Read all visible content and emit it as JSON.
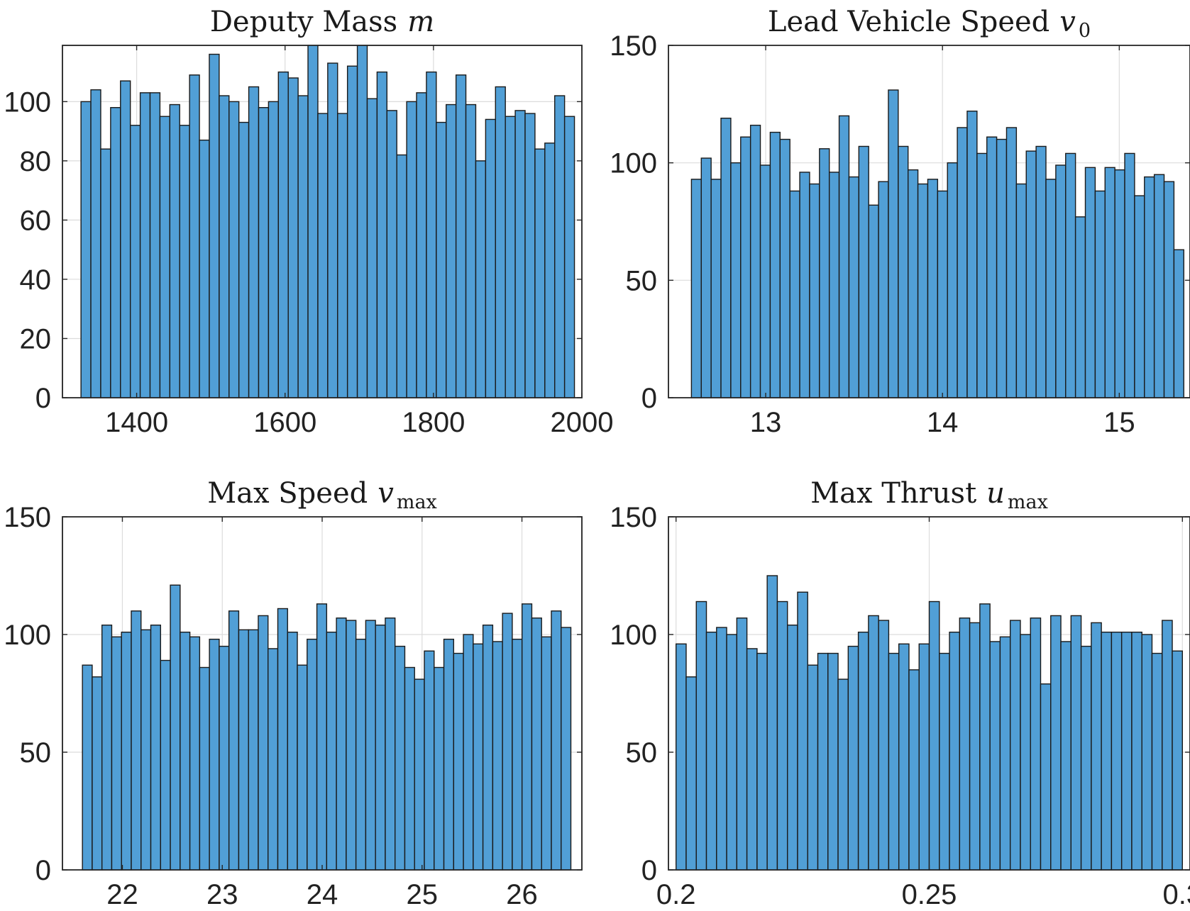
{
  "figure": {
    "bar_color": "#519fd6",
    "edge_color": "#1a1a1a"
  },
  "chart_data": [
    {
      "type": "bar",
      "title": "Deputy Mass",
      "title_symbol": "m",
      "title_subscript": "",
      "xlabel": "",
      "ylabel": "",
      "xlim": [
        1300,
        2000
      ],
      "ylim": [
        0,
        119
      ],
      "xticks": [
        1400,
        1600,
        1800,
        2000
      ],
      "xtick_labels": [
        "1400",
        "1600",
        "1800",
        "2000"
      ],
      "yticks": [
        0,
        20,
        40,
        60,
        80,
        100
      ],
      "ytick_labels": [
        "0",
        "20",
        "40",
        "60",
        "80",
        "100"
      ],
      "grid": true,
      "bin_start": 1325,
      "bin_width": 13.3,
      "values": [
        100,
        104,
        84,
        98,
        107,
        92,
        103,
        103,
        95,
        99,
        92,
        109,
        87,
        116,
        102,
        100,
        93,
        105,
        98,
        100,
        110,
        108,
        102,
        119,
        96,
        113,
        96,
        112,
        119,
        101,
        110,
        97,
        82,
        100,
        103,
        110,
        93,
        99,
        109,
        99,
        80,
        94,
        105,
        95,
        97,
        96,
        84,
        86,
        102,
        95
      ]
    },
    {
      "type": "bar",
      "title": "Lead Vehicle Speed",
      "title_symbol": "v",
      "title_subscript": "0",
      "xlabel": "",
      "ylabel": "",
      "xlim": [
        12.45,
        15.4
      ],
      "ylim": [
        0,
        150
      ],
      "xticks": [
        13,
        14,
        15
      ],
      "xtick_labels": [
        "13",
        "14",
        "15"
      ],
      "yticks": [
        0,
        50,
        100,
        150
      ],
      "ytick_labels": [
        "0",
        "50",
        "100",
        "150"
      ],
      "grid": true,
      "bin_start": 12.58,
      "bin_width": 0.0557,
      "values": [
        93,
        102,
        93,
        119,
        100,
        111,
        116,
        99,
        113,
        110,
        88,
        96,
        91,
        106,
        96,
        120,
        94,
        107,
        82,
        92,
        131,
        107,
        97,
        91,
        93,
        88,
        100,
        115,
        122,
        104,
        111,
        110,
        115,
        91,
        105,
        107,
        93,
        99,
        104,
        77,
        98,
        88,
        98,
        97,
        104,
        86,
        94,
        95,
        92,
        63
      ]
    },
    {
      "type": "bar",
      "title": "Max Speed",
      "title_symbol": "v",
      "title_subscript": "max",
      "xlabel": "",
      "ylabel": "",
      "xlim": [
        21.4,
        26.6
      ],
      "ylim": [
        0,
        150
      ],
      "xticks": [
        22,
        23,
        24,
        25,
        26
      ],
      "xtick_labels": [
        "22",
        "23",
        "24",
        "25",
        "26"
      ],
      "yticks": [
        0,
        50,
        100,
        150
      ],
      "ytick_labels": [
        "0",
        "50",
        "100",
        "150"
      ],
      "grid": true,
      "bin_start": 21.6,
      "bin_width": 0.0978,
      "values": [
        87,
        82,
        104,
        99,
        101,
        110,
        102,
        104,
        89,
        121,
        101,
        99,
        86,
        98,
        95,
        110,
        102,
        102,
        108,
        94,
        111,
        101,
        87,
        98,
        113,
        101,
        107,
        106,
        98,
        106,
        104,
        107,
        95,
        86,
        81,
        93,
        86,
        98,
        92,
        100,
        96,
        104,
        97,
        109,
        98,
        113,
        107,
        99,
        110,
        103
      ]
    },
    {
      "type": "bar",
      "title": "Max Thrust",
      "title_symbol": "u",
      "title_subscript": "max",
      "xlabel": "",
      "ylabel": "",
      "xlim": [
        0.1985,
        0.3015
      ],
      "ylim": [
        0,
        150
      ],
      "xticks": [
        0.2,
        0.25,
        0.3
      ],
      "xtick_labels": [
        "0.2",
        "0.25",
        "0.3"
      ],
      "yticks": [
        0,
        50,
        100,
        150
      ],
      "ytick_labels": [
        "0",
        "50",
        "100",
        "150"
      ],
      "grid": true,
      "bin_start": 0.2,
      "bin_width": 0.002,
      "values": [
        96,
        82,
        114,
        101,
        103,
        100,
        107,
        94,
        92,
        125,
        114,
        104,
        118,
        87,
        92,
        92,
        81,
        95,
        101,
        108,
        106,
        92,
        96,
        85,
        96,
        114,
        92,
        101,
        107,
        105,
        113,
        97,
        99,
        106,
        100,
        107,
        79,
        108,
        97,
        108,
        95,
        105,
        101,
        101,
        101,
        101,
        100,
        92,
        106,
        93
      ]
    }
  ]
}
